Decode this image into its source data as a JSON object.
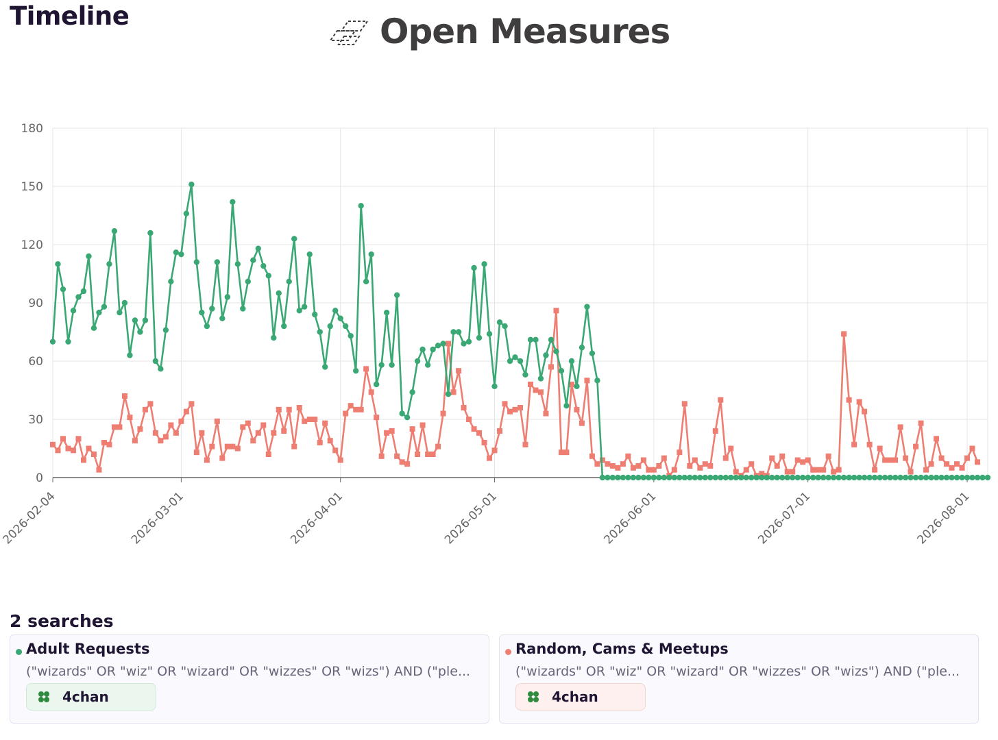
{
  "header": {
    "title": "Timeline",
    "brand": "Open Measures"
  },
  "colors": {
    "series_a": "#3aa874",
    "series_b": "#ee7d72",
    "grid": "#e6e6e6",
    "axis": "#666666"
  },
  "searches": {
    "heading": "2 searches",
    "cards": [
      {
        "name": "Adult Requests",
        "query": "(\"wizards\" OR \"wiz\" OR \"wizard\" OR \"wizzes\" OR \"wizs\") AND (\"ple...",
        "source": "4chan",
        "source_icon": "four-leaf-clover-icon",
        "color": "#3aa874"
      },
      {
        "name": "Random, Cams & Meetups",
        "query": "(\"wizards\" OR \"wiz\" OR \"wizard\" OR \"wizzes\" OR \"wizs\") AND (\"ple...",
        "source": "4chan",
        "source_icon": "four-leaf-clover-icon",
        "color": "#ee7d72"
      }
    ]
  },
  "chart_data": {
    "type": "line",
    "grid": true,
    "legend": "none",
    "x_start": "2026-02-04",
    "x_end": "2026-08-05",
    "xticks": [
      "2026-02-04",
      "2026-03-01",
      "2026-04-01",
      "2026-05-01",
      "2026-06-01",
      "2026-07-01",
      "2026-08-01"
    ],
    "ylim": [
      0,
      180
    ],
    "yticks": [
      0,
      30,
      60,
      90,
      120,
      150,
      180
    ],
    "series": [
      {
        "key": "adult_requests",
        "color": "#3aa874",
        "marker": "circle",
        "values": [
          70,
          110,
          97,
          70,
          86,
          93,
          96,
          114,
          77,
          85,
          88,
          110,
          127,
          85,
          90,
          63,
          81,
          75,
          81,
          126,
          60,
          56,
          76,
          101,
          116,
          115,
          136,
          151,
          111,
          85,
          78,
          87,
          111,
          82,
          93,
          142,
          110,
          87,
          101,
          112,
          118,
          109,
          104,
          72,
          95,
          78,
          101,
          123,
          86,
          88,
          115,
          84,
          75,
          57,
          78,
          86,
          82,
          78,
          73,
          55,
          140,
          101,
          115,
          48,
          58,
          85,
          58,
          94,
          33,
          31,
          44,
          60,
          66,
          58,
          66,
          68,
          69,
          43,
          75,
          75,
          69,
          70,
          108,
          72,
          110,
          74,
          47,
          80,
          78,
          60,
          62,
          60,
          53,
          71,
          71,
          51,
          63,
          71,
          65,
          55,
          37,
          60,
          47,
          67,
          88,
          64,
          50,
          0,
          0,
          0,
          0,
          0,
          0,
          0,
          0,
          0,
          0,
          0,
          0,
          0,
          0,
          0,
          0,
          0,
          0,
          0,
          0,
          0,
          0,
          0,
          0,
          0,
          0,
          0,
          0,
          0,
          0,
          0,
          0,
          0,
          0,
          0,
          0,
          0,
          0,
          0,
          0,
          0,
          0,
          0,
          0,
          0,
          0,
          0,
          0,
          0,
          0,
          0,
          0,
          0,
          0,
          0,
          0,
          0,
          0,
          0,
          0,
          0,
          0,
          0,
          0,
          0,
          0,
          0,
          0,
          0,
          0,
          0,
          0,
          0,
          0,
          0,
          0
        ]
      },
      {
        "key": "random_cams_meetups",
        "color": "#ee7d72",
        "marker": "square",
        "values": [
          17,
          14,
          20,
          15,
          14,
          20,
          9,
          15,
          12,
          4,
          18,
          17,
          26,
          26,
          42,
          31,
          19,
          25,
          35,
          38,
          23,
          19,
          21,
          27,
          23,
          29,
          34,
          38,
          13,
          23,
          9,
          16,
          29,
          10,
          16,
          16,
          15,
          26,
          28,
          19,
          23,
          27,
          12,
          23,
          35,
          24,
          35,
          16,
          36,
          29,
          30,
          30,
          18,
          28,
          19,
          14,
          9,
          33,
          37,
          35,
          35,
          56,
          44,
          31,
          11,
          23,
          24,
          11,
          8,
          7,
          25,
          12,
          27,
          12,
          12,
          16,
          33,
          69,
          44,
          55,
          36,
          30,
          25,
          23,
          18,
          10,
          14,
          24,
          38,
          34,
          35,
          36,
          17,
          48,
          45,
          44,
          33,
          57,
          86,
          13,
          13,
          48,
          35,
          28,
          50,
          11,
          7,
          9,
          7,
          6,
          5,
          7,
          11,
          5,
          6,
          9,
          4,
          4,
          6,
          10,
          1,
          4,
          13,
          38,
          6,
          9,
          5,
          7,
          6,
          24,
          40,
          10,
          15,
          3,
          1,
          4,
          7,
          1,
          2,
          1,
          10,
          6,
          11,
          3,
          3,
          9,
          8,
          9,
          4,
          4,
          4,
          11,
          3,
          4,
          74,
          40,
          17,
          39,
          34,
          17,
          4,
          15,
          9,
          9,
          9,
          26,
          10,
          3,
          16,
          28,
          4,
          7,
          20,
          10,
          7,
          5,
          7,
          5,
          10,
          15,
          8
        ]
      }
    ]
  }
}
